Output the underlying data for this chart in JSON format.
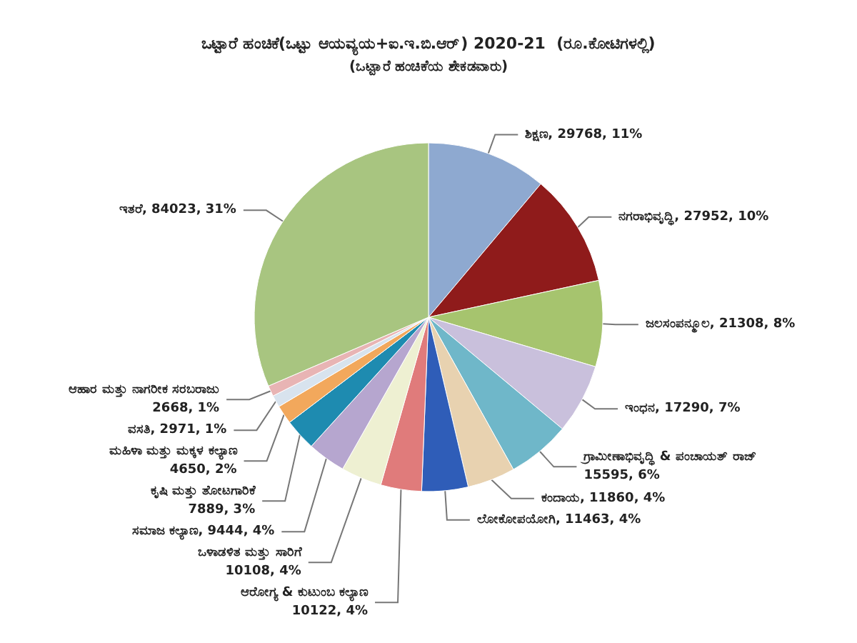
{
  "chart_data": {
    "type": "pie",
    "title": "ಒಟ್ಟಾರೆ ಹಂಚಿಕೆ(ಒಟ್ಟು ಆಯವ್ಯಯ+ಐ.ಇ.ಬಿ.ಆರ್) 2020-21  (ರೂ.ಕೋಟಿಗಳಲ್ಲಿ)",
    "subtitle": "(ಒಟ್ಟಾರೆ ಹಂಚಿಕೆಯ ಶೇಕಡವಾರು)",
    "categories": [
      "ಶಿಕ್ಷಣ",
      "ನಗರಾಭಿವೃದ್ಧಿ",
      "ಜಲಸಂಪನ್ಮೂಲ",
      "ಇಂಧನ",
      "ಗ್ರಾಮೀಣಾಭಿವೃದ್ಧಿ & ಪಂಚಾಯತ್ ರಾಜ್",
      "ಕಂದಾಯ",
      "ಲೋಕೋಪಯೋಗಿ",
      "ಆರೋಗ್ಯ & ಕುಟುಂಬ ಕಲ್ಯಾಣ",
      "ಒಳಾಡಳಿತ ಮತ್ತು ಸಾರಿಗೆ",
      "ಸಮಾಜ ಕಲ್ಯಾಣ",
      "ಕೃಷಿ ಮತ್ತು ತೋಟಗಾರಿಕೆ",
      "ಮಹಿಳಾ ಮತ್ತು ಮಕ್ಕಳ ಕಲ್ಯಾಣ",
      "ವಸತಿ",
      "ಆಹಾರ ಮತ್ತು ನಾಗರೀಕ ಸರಬರಾಜು",
      "ಇತರೆ"
    ],
    "values": [
      29768,
      27952,
      21308,
      17290,
      15595,
      11860,
      11463,
      10122,
      10108,
      9444,
      7889,
      4650,
      2971,
      2668,
      84023
    ],
    "value_labels": [
      "29768, 11%",
      "27952, 10%",
      "21308, 8%",
      "17290, 7%",
      "15595, 6%",
      "11860, 4%",
      "11463, 4%",
      "10122, 4%",
      "10108, 4%",
      "9444, 4%",
      "7889, 3%",
      "4650, 2%",
      "2971, 1%",
      "2668, 1%",
      "84023, 31%"
    ],
    "colors": [
      "#8ea9d0",
      "#8f1b1b",
      "#a6c46e",
      "#c9c0dc",
      "#6fb7c9",
      "#e8d2b0",
      "#2f5db8",
      "#e07b7b",
      "#eef0d2",
      "#b6a6cf",
      "#1e8bb0",
      "#f2a85c",
      "#d8e3ee",
      "#e8b4b4",
      "#a8c580"
    ]
  }
}
